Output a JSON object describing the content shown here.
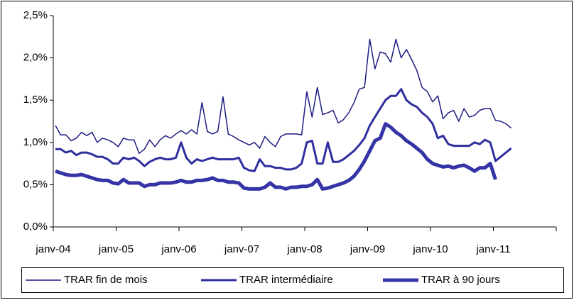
{
  "chart_data": {
    "type": "line",
    "categories": [
      "janv-04",
      null,
      null,
      null,
      null,
      null,
      null,
      null,
      null,
      null,
      null,
      null,
      "janv-05",
      null,
      null,
      null,
      null,
      null,
      null,
      null,
      null,
      null,
      null,
      null,
      "janv-06",
      null,
      null,
      null,
      null,
      null,
      null,
      null,
      null,
      null,
      null,
      null,
      "janv-07",
      null,
      null,
      null,
      null,
      null,
      null,
      null,
      null,
      null,
      null,
      null,
      "janv-08",
      null,
      null,
      null,
      null,
      null,
      null,
      null,
      null,
      null,
      null,
      null,
      "janv-09",
      null,
      null,
      null,
      null,
      null,
      null,
      null,
      null,
      null,
      null,
      null,
      "janv-10",
      null,
      null,
      null,
      null,
      null,
      null,
      null,
      null,
      null,
      null,
      null,
      "janv-11",
      null,
      null,
      null,
      null,
      null,
      null,
      null,
      null,
      null,
      null,
      null
    ],
    "series": [
      {
        "name": "TRAR fin de mois",
        "color": "#1c1c82",
        "values": [
          1.2,
          1.09,
          1.09,
          1.02,
          1.05,
          1.12,
          1.08,
          1.12,
          1.0,
          1.05,
          1.03,
          1.0,
          0.95,
          1.05,
          1.03,
          1.03,
          0.87,
          0.92,
          1.03,
          0.95,
          1.03,
          1.08,
          1.05,
          1.1,
          1.14,
          1.1,
          1.15,
          1.1,
          1.47,
          1.13,
          1.1,
          1.13,
          1.54,
          1.1,
          1.07,
          1.03,
          1.0,
          0.97,
          1.0,
          0.93,
          1.07,
          1.0,
          0.95,
          1.07,
          1.1,
          1.1,
          1.1,
          1.09,
          1.6,
          1.3,
          1.65,
          1.33,
          1.35,
          1.38,
          1.23,
          1.27,
          1.35,
          1.47,
          1.63,
          1.65,
          2.22,
          1.87,
          2.07,
          2.05,
          1.95,
          2.22,
          2.0,
          2.1,
          1.98,
          1.85,
          1.65,
          1.6,
          1.48,
          1.55,
          1.28,
          1.35,
          1.38,
          1.25,
          1.4,
          1.3,
          1.32,
          1.38,
          1.4,
          1.4,
          1.26,
          1.25,
          1.22,
          1.17,
          null,
          null,
          null,
          null,
          null,
          null,
          null,
          null
        ]
      },
      {
        "name": "TRAR intermédiaire",
        "color": "#2f2fa0",
        "values": [
          0.92,
          0.92,
          0.88,
          0.9,
          0.85,
          0.88,
          0.88,
          0.86,
          0.83,
          0.83,
          0.8,
          0.75,
          0.75,
          0.82,
          0.8,
          0.82,
          0.78,
          0.72,
          0.77,
          0.8,
          0.82,
          0.8,
          0.8,
          0.82,
          1.0,
          0.82,
          0.75,
          0.8,
          0.78,
          0.8,
          0.82,
          0.8,
          0.8,
          0.8,
          0.8,
          0.82,
          0.7,
          0.67,
          0.66,
          0.8,
          0.72,
          0.72,
          0.7,
          0.7,
          0.68,
          0.68,
          0.7,
          0.75,
          1.0,
          1.02,
          0.75,
          0.75,
          1.0,
          0.77,
          0.77,
          0.8,
          0.85,
          0.9,
          0.97,
          1.05,
          1.2,
          1.3,
          1.4,
          1.5,
          1.55,
          1.55,
          1.63,
          1.5,
          1.45,
          1.42,
          1.35,
          1.3,
          1.22,
          1.05,
          1.08,
          0.98,
          0.96,
          0.96,
          0.96,
          0.96,
          1.0,
          0.98,
          1.03,
          1.0,
          0.78,
          0.83,
          0.88,
          0.93,
          null,
          null,
          null,
          null,
          null,
          null,
          null,
          null
        ]
      },
      {
        "name": "TRAR à 90 jours",
        "color": "#3434a6",
        "values": [
          0.66,
          0.64,
          0.62,
          0.61,
          0.61,
          0.62,
          0.6,
          0.58,
          0.56,
          0.55,
          0.55,
          0.52,
          0.51,
          0.56,
          0.52,
          0.52,
          0.52,
          0.48,
          0.5,
          0.5,
          0.52,
          0.52,
          0.52,
          0.53,
          0.55,
          0.53,
          0.53,
          0.55,
          0.55,
          0.56,
          0.58,
          0.55,
          0.55,
          0.53,
          0.53,
          0.52,
          0.46,
          0.45,
          0.45,
          0.45,
          0.47,
          0.52,
          0.47,
          0.47,
          0.45,
          0.47,
          0.47,
          0.48,
          0.48,
          0.5,
          0.56,
          0.45,
          0.46,
          0.48,
          0.5,
          0.52,
          0.55,
          0.6,
          0.68,
          0.78,
          0.9,
          1.02,
          1.05,
          1.22,
          1.18,
          1.12,
          1.08,
          1.02,
          0.98,
          0.93,
          0.88,
          0.8,
          0.75,
          0.73,
          0.71,
          0.72,
          0.7,
          0.72,
          0.73,
          0.7,
          0.66,
          0.7,
          0.7,
          0.75,
          0.56,
          null,
          null,
          null,
          null,
          null,
          null,
          null,
          null,
          null,
          null,
          null
        ]
      }
    ],
    "ylim": [
      0,
      2.5
    ],
    "yticks": [
      {
        "value": 0,
        "label": "0,0%"
      },
      {
        "value": 0.5,
        "label": "0,5%"
      },
      {
        "value": 1,
        "label": "1,0%"
      },
      {
        "value": 1.5,
        "label": "1,5%"
      },
      {
        "value": 2,
        "label": "2,0%"
      },
      {
        "value": 2.5,
        "label": "2,5%"
      }
    ],
    "grid": false,
    "legend": "bottom"
  }
}
